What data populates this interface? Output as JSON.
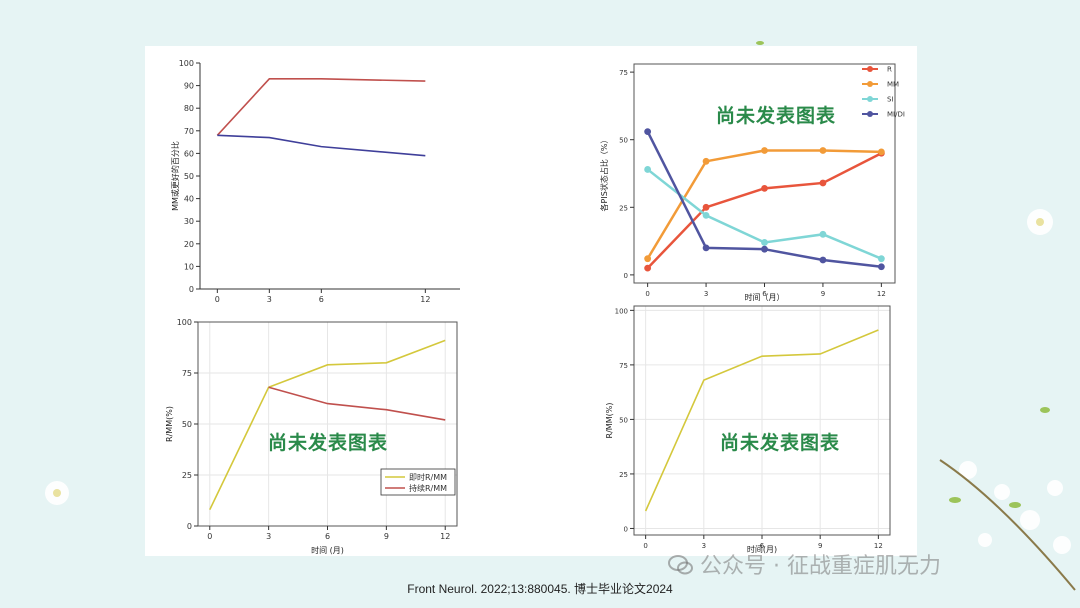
{
  "overlay_text": "尚未发表图表",
  "citation": "Front Neurol. 2022;13:880045. 博士毕业论文2024",
  "watermark": "公众号 · 征战重症肌无力",
  "colors": {
    "background": "#e6f4f4",
    "overlay_green": "#2a8a4a",
    "red": "#c0504d",
    "navy": "#3f3f9a",
    "yellow": "#d4c83c",
    "orange": "#f29b38",
    "cyan": "#7fd6d6"
  },
  "chart_data": [
    {
      "id": "chart1",
      "type": "line",
      "ylabel": "MM或更好的百分比",
      "xlabel": "",
      "x": [
        0,
        3,
        6,
        12
      ],
      "xticks": [
        "0",
        "3",
        "6",
        "12"
      ],
      "yticks": [
        "0",
        "10",
        "20",
        "30",
        "40",
        "50",
        "60",
        "70",
        "80",
        "90",
        "100"
      ],
      "ylim": [
        0,
        100
      ],
      "xlim": [
        -1,
        14
      ],
      "grid": false,
      "series": [
        {
          "values": [
            68,
            93,
            93,
            92
          ],
          "color": "#c0504d"
        },
        {
          "values": [
            68,
            67,
            63,
            59
          ],
          "color": "#3f3f9a"
        }
      ]
    },
    {
      "id": "chart2",
      "type": "line",
      "ylabel": "各PIS状态占比（%）",
      "xlabel": "时间（月）",
      "x": [
        0,
        3,
        6,
        9,
        12
      ],
      "xticks": [
        "0",
        "3",
        "6",
        "9",
        "12"
      ],
      "yticks": [
        "0",
        "25",
        "50",
        "75"
      ],
      "ylim": [
        -3,
        78
      ],
      "xlim": [
        -0.7,
        12.7
      ],
      "grid": false,
      "legend_position": "top-right",
      "markers": true,
      "series": [
        {
          "name": "R",
          "values": [
            2.5,
            25,
            32,
            34,
            45
          ],
          "color": "#e8553c"
        },
        {
          "name": "MM",
          "values": [
            6,
            42,
            46,
            46,
            45.5
          ],
          "color": "#f29b38"
        },
        {
          "name": "SI",
          "values": [
            39,
            22,
            12,
            15,
            6
          ],
          "color": "#7fd6d6"
        },
        {
          "name": "MI/DI",
          "values": [
            53,
            10,
            9.5,
            5.5,
            3
          ],
          "color": "#5055a0"
        }
      ]
    },
    {
      "id": "chart3",
      "type": "line",
      "ylabel": "R/MM(%)",
      "xlabel": "时间 (月)",
      "x": [
        0,
        3,
        6,
        9,
        12
      ],
      "xticks": [
        "0",
        "3",
        "6",
        "9",
        "12"
      ],
      "yticks": [
        "0",
        "25",
        "50",
        "75",
        "100"
      ],
      "ylim": [
        0,
        100
      ],
      "xlim": [
        -0.6,
        12.6
      ],
      "grid": true,
      "legend_position": "bottom-right",
      "series": [
        {
          "name": "即时R/MM",
          "values": [
            8,
            68,
            79,
            80,
            91
          ],
          "color": "#d4c83c"
        },
        {
          "name": "持续R/MM",
          "x": [
            3,
            6,
            9,
            12
          ],
          "values": [
            68,
            60,
            57,
            52
          ],
          "color": "#c0504d"
        }
      ]
    },
    {
      "id": "chart4",
      "type": "line",
      "ylabel": "R/MM(%)",
      "xlabel": "时间(月)",
      "x": [
        0,
        3,
        6,
        9,
        12
      ],
      "xticks": [
        "0",
        "3",
        "6",
        "9",
        "12"
      ],
      "yticks": [
        "0",
        "25",
        "50",
        "75",
        "100"
      ],
      "ylim": [
        -3,
        102
      ],
      "xlim": [
        -0.6,
        12.6
      ],
      "grid": true,
      "series": [
        {
          "values": [
            8,
            68,
            79,
            80,
            91
          ],
          "color": "#d4c83c"
        }
      ]
    }
  ]
}
